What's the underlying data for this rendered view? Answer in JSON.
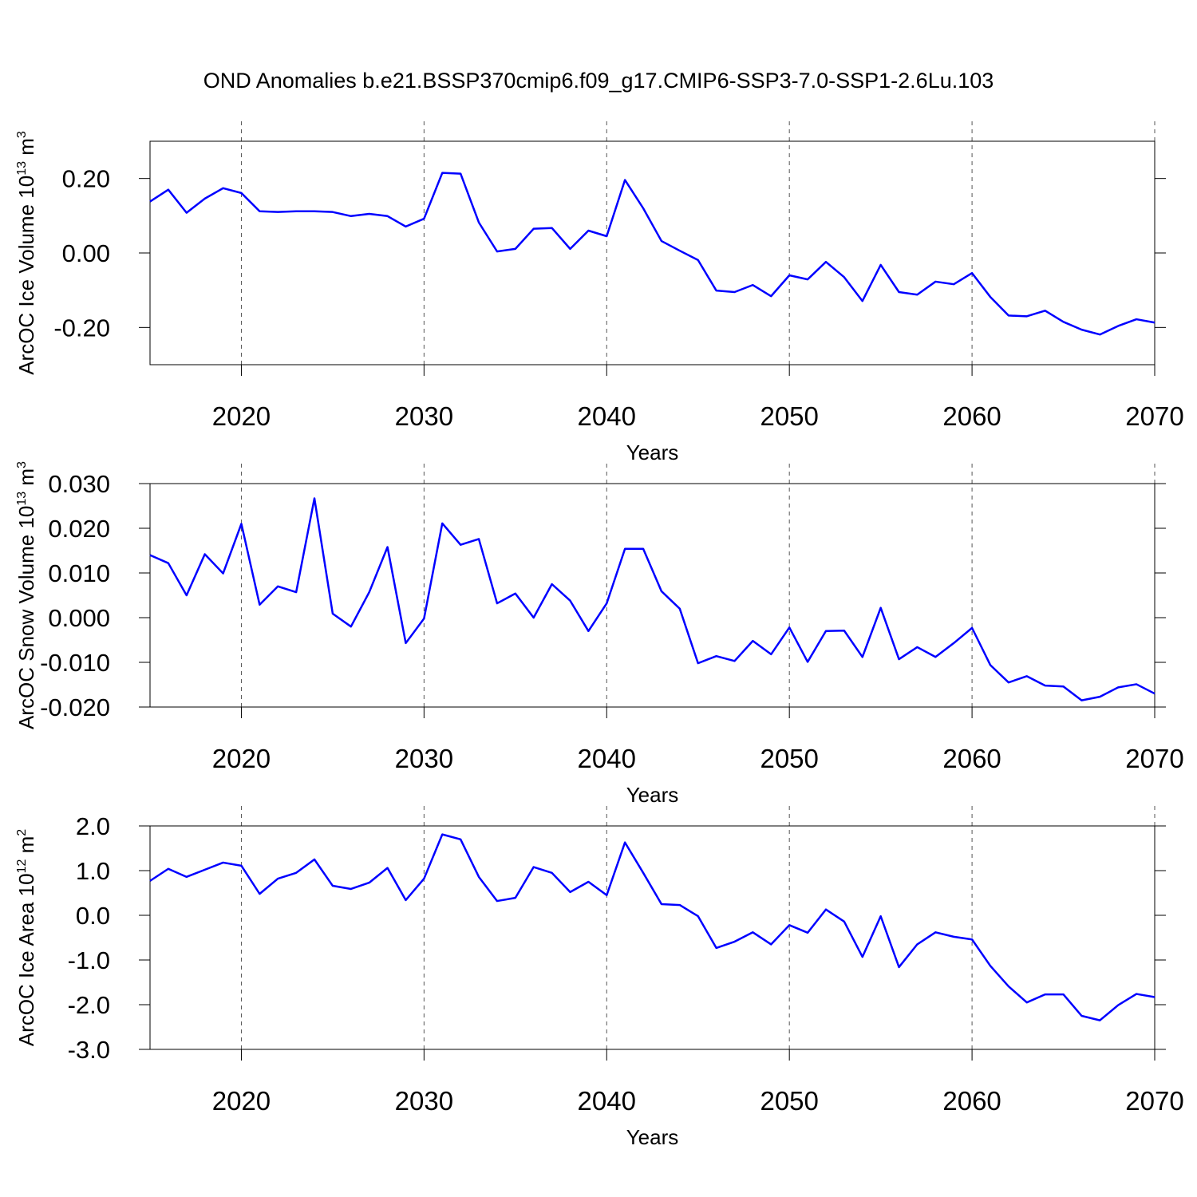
{
  "title": "OND Anomalies b.e21.BSSP370cmip6.f09_g17.CMIP6-SSP3-7.0-SSP1-2.6Lu.103",
  "chart_data": [
    {
      "type": "line",
      "ylabel": {
        "text": "ArcOC Ice Volume 10",
        "exp": "13",
        "unit": " m",
        "unit_exp": "3"
      },
      "xlabel": "Years",
      "x": [
        2015,
        2016,
        2017,
        2018,
        2019,
        2020,
        2021,
        2022,
        2023,
        2024,
        2025,
        2026,
        2027,
        2028,
        2029,
        2030,
        2031,
        2032,
        2033,
        2034,
        2035,
        2036,
        2037,
        2038,
        2039,
        2040,
        2041,
        2042,
        2043,
        2044,
        2045,
        2046,
        2047,
        2048,
        2049,
        2050,
        2051,
        2052,
        2053,
        2054,
        2055,
        2056,
        2057,
        2058,
        2059,
        2060,
        2061,
        2062,
        2063,
        2064,
        2065,
        2066,
        2067,
        2068,
        2069,
        2070
      ],
      "series": [
        {
          "color": "#0000ff",
          "values": [
            0.138,
            0.17,
            0.108,
            0.146,
            0.174,
            0.161,
            0.112,
            0.11,
            0.112,
            0.112,
            0.11,
            0.099,
            0.105,
            0.099,
            0.071,
            0.092,
            0.215,
            0.213,
            0.082,
            0.004,
            0.011,
            0.065,
            0.067,
            0.011,
            0.06,
            0.045,
            0.196,
            0.12,
            0.032,
            0.006,
            -0.019,
            -0.101,
            -0.105,
            -0.086,
            -0.116,
            -0.06,
            -0.071,
            -0.024,
            -0.065,
            -0.129,
            -0.032,
            -0.105,
            -0.112,
            -0.077,
            -0.084,
            -0.054,
            -0.118,
            -0.168,
            -0.17,
            -0.155,
            -0.185,
            -0.206,
            -0.219,
            -0.196,
            -0.178,
            -0.187
          ]
        }
      ],
      "xlim": [
        2015,
        2070
      ],
      "xticks": [
        2020,
        2030,
        2040,
        2050,
        2060,
        2070
      ],
      "ylim": [
        -0.3,
        0.3
      ],
      "yticks": [
        {
          "value": 0.2,
          "label": "0.20"
        },
        {
          "value": 0,
          "label": "0.00"
        },
        {
          "value": -0.2,
          "label": "-0.20"
        }
      ],
      "grid": true
    },
    {
      "type": "line",
      "ylabel": {
        "text": "ArcOC Snow Volume 10",
        "exp": "13",
        "unit": " m",
        "unit_exp": "3"
      },
      "xlabel": "Years",
      "x": [
        2015,
        2016,
        2017,
        2018,
        2019,
        2020,
        2021,
        2022,
        2023,
        2024,
        2025,
        2026,
        2027,
        2028,
        2029,
        2030,
        2031,
        2032,
        2033,
        2034,
        2035,
        2036,
        2037,
        2038,
        2039,
        2040,
        2041,
        2042,
        2043,
        2044,
        2045,
        2046,
        2047,
        2048,
        2049,
        2050,
        2051,
        2052,
        2053,
        2054,
        2055,
        2056,
        2057,
        2058,
        2059,
        2060,
        2061,
        2062,
        2063,
        2064,
        2065,
        2066,
        2067,
        2068,
        2069,
        2070
      ],
      "series": [
        {
          "color": "#0000ff",
          "values": [
            0.014,
            0.0122,
            0.005,
            0.0142,
            0.0099,
            0.021,
            0.0029,
            0.007,
            0.0057,
            0.0267,
            0.0009,
            -0.002,
            0.0057,
            0.0158,
            -0.0057,
            -0.0002,
            0.0211,
            0.0163,
            0.0176,
            0.0032,
            0.0054,
            0.0,
            0.0075,
            0.0038,
            -0.003,
            0.0032,
            0.0154,
            0.0154,
            0.0059,
            0.002,
            -0.0102,
            -0.0086,
            -0.0097,
            -0.0052,
            -0.0082,
            -0.0022,
            -0.0099,
            -0.003,
            -0.0029,
            -0.0088,
            0.0022,
            -0.0093,
            -0.0066,
            -0.0088,
            -0.0057,
            -0.0023,
            -0.0106,
            -0.0145,
            -0.0131,
            -0.0152,
            -0.0154,
            -0.0185,
            -0.0177,
            -0.0156,
            -0.0149,
            -0.017
          ]
        }
      ],
      "xlim": [
        2015,
        2070
      ],
      "xticks": [
        2020,
        2030,
        2040,
        2050,
        2060,
        2070
      ],
      "ylim": [
        -0.02,
        0.03
      ],
      "yticks": [
        {
          "value": 0.03,
          "label": "0.030"
        },
        {
          "value": 0.02,
          "label": "0.020"
        },
        {
          "value": 0.01,
          "label": "0.010"
        },
        {
          "value": 0,
          "label": "0.000"
        },
        {
          "value": -0.01,
          "label": "-0.010"
        },
        {
          "value": -0.02,
          "label": "-0.020"
        }
      ],
      "grid": true
    },
    {
      "type": "line",
      "ylabel": {
        "text": "ArcOC Ice Area 10",
        "exp": "12",
        "unit": " m",
        "unit_exp": "2"
      },
      "xlabel": "Years",
      "x": [
        2015,
        2016,
        2017,
        2018,
        2019,
        2020,
        2021,
        2022,
        2023,
        2024,
        2025,
        2026,
        2027,
        2028,
        2029,
        2030,
        2031,
        2032,
        2033,
        2034,
        2035,
        2036,
        2037,
        2038,
        2039,
        2040,
        2041,
        2042,
        2043,
        2044,
        2045,
        2046,
        2047,
        2048,
        2049,
        2050,
        2051,
        2052,
        2053,
        2054,
        2055,
        2056,
        2057,
        2058,
        2059,
        2060,
        2061,
        2062,
        2063,
        2064,
        2065,
        2066,
        2067,
        2068,
        2069,
        2070
      ],
      "series": [
        {
          "color": "#0000ff",
          "values": [
            0.77,
            1.04,
            0.86,
            1.02,
            1.18,
            1.11,
            0.48,
            0.82,
            0.95,
            1.25,
            0.66,
            0.59,
            0.73,
            1.06,
            0.34,
            0.82,
            1.81,
            1.7,
            0.86,
            0.32,
            0.39,
            1.08,
            0.95,
            0.52,
            0.75,
            0.45,
            1.63,
            0.95,
            0.25,
            0.23,
            -0.02,
            -0.73,
            -0.59,
            -0.38,
            -0.65,
            -0.22,
            -0.39,
            0.13,
            -0.14,
            -0.93,
            -0.02,
            -1.16,
            -0.65,
            -0.38,
            -0.48,
            -0.54,
            -1.13,
            -1.59,
            -1.95,
            -1.77,
            -1.77,
            -2.25,
            -2.35,
            -2.01,
            -1.76,
            -1.83
          ]
        }
      ],
      "xlim": [
        2015,
        2070
      ],
      "xticks": [
        2020,
        2030,
        2040,
        2050,
        2060,
        2070
      ],
      "ylim": [
        -3,
        2
      ],
      "yticks": [
        {
          "value": 2,
          "label": "2.0"
        },
        {
          "value": 1,
          "label": "1.0"
        },
        {
          "value": 0,
          "label": "0.0"
        },
        {
          "value": -1,
          "label": "-1.0"
        },
        {
          "value": -2,
          "label": "-2.0"
        },
        {
          "value": -3,
          "label": "-3.0"
        }
      ],
      "grid": true
    }
  ]
}
